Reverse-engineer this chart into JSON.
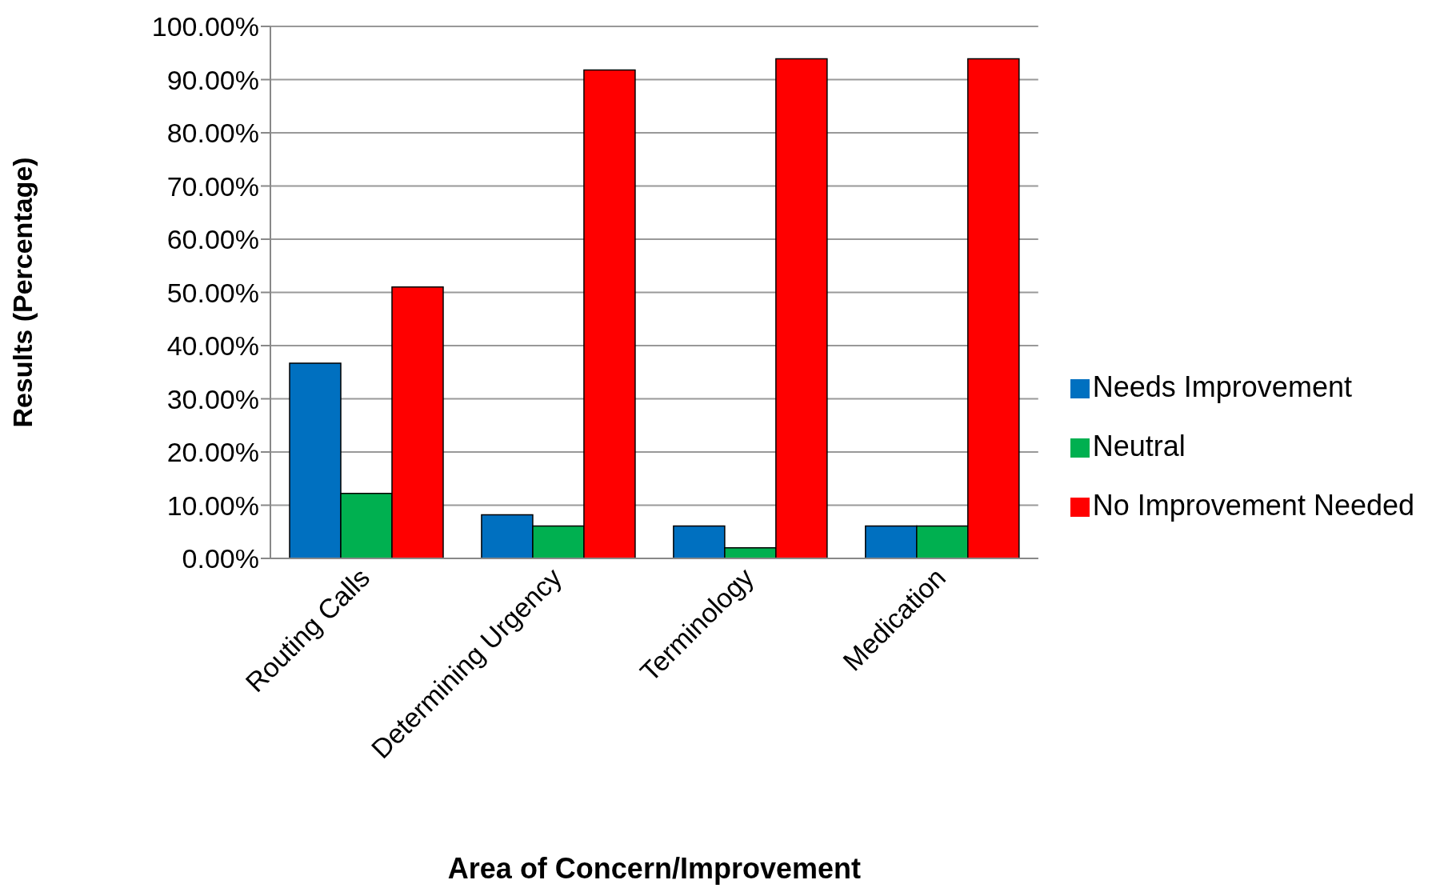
{
  "chart_data": {
    "type": "bar",
    "xlabel": "Area of Concern/Improvement",
    "ylabel": "Results (Percentage)",
    "categories": [
      "Routing Calls",
      "Determining Urgency",
      "Terminology",
      "Medication"
    ],
    "series": [
      {
        "name": "Needs Improvement",
        "color": "#0070c0",
        "values": [
          36.7,
          8.2,
          6.1,
          6.1
        ]
      },
      {
        "name": "Neutral",
        "color": "#00b050",
        "values": [
          12.2,
          6.1,
          2.0,
          6.1
        ]
      },
      {
        "name": "No Improvement Needed",
        "color": "#ff0000",
        "values": [
          51.0,
          91.8,
          93.9,
          93.9
        ]
      }
    ],
    "ylim": [
      0,
      100
    ],
    "yticks": [
      {
        "value": 0,
        "label": "0.00%"
      },
      {
        "value": 10,
        "label": "10.00%"
      },
      {
        "value": 20,
        "label": "20.00%"
      },
      {
        "value": 30,
        "label": "30.00%"
      },
      {
        "value": 40,
        "label": "40.00%"
      },
      {
        "value": 50,
        "label": "50.00%"
      },
      {
        "value": 60,
        "label": "60.00%"
      },
      {
        "value": 70,
        "label": "70.00%"
      },
      {
        "value": 80,
        "label": "80.00%"
      },
      {
        "value": 90,
        "label": "90.00%"
      },
      {
        "value": 100,
        "label": "100.00%"
      }
    ],
    "grid": "y",
    "legend": "right"
  }
}
